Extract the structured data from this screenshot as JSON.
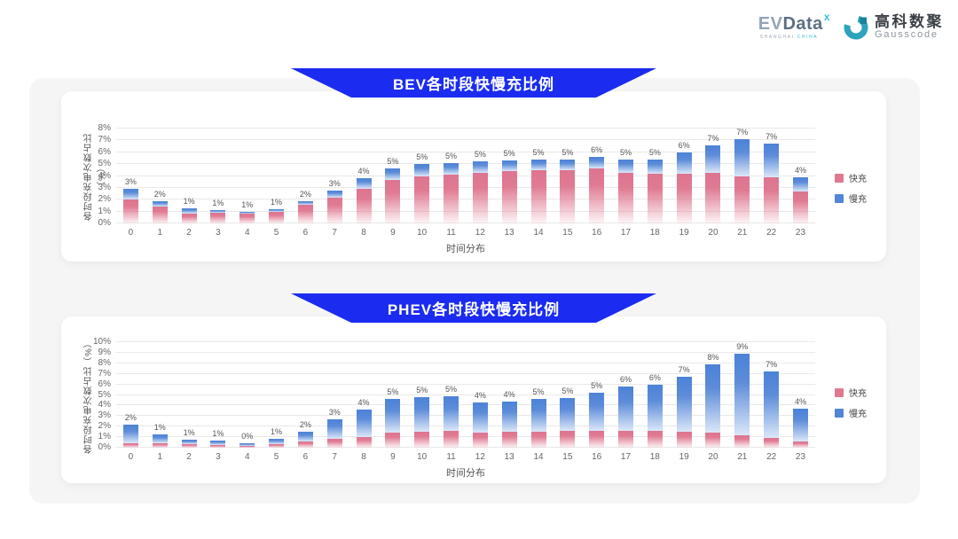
{
  "logo": {
    "evdata": {
      "ev": "EV",
      "data": "Data",
      "sup": "x",
      "sub_left": "SHANGHAI",
      "sub_right": "CHINA"
    },
    "gausscode": {
      "cn": "高科数聚",
      "en": "Gausscode"
    }
  },
  "colors": {
    "banner_blue": "#1b2cf0",
    "fast_pink": "#e0788f",
    "slow_blue": "#5285d6",
    "panel_gray": "#f5f5f6"
  },
  "chart_data": [
    {
      "type": "bar",
      "stacked": true,
      "title": "BEV各时段快慢充比例",
      "xlabel": "时间分布",
      "ylabel": "各时段充电次数占比（%）",
      "ylim": [
        0,
        8
      ],
      "ytick_step": 1,
      "grid": true,
      "legend_position": "right",
      "categories": [
        "0",
        "1",
        "2",
        "3",
        "4",
        "5",
        "6",
        "7",
        "8",
        "9",
        "10",
        "11",
        "12",
        "13",
        "14",
        "15",
        "16",
        "17",
        "18",
        "19",
        "20",
        "21",
        "22",
        "23"
      ],
      "series": [
        {
          "name": "快充",
          "color": "#e0788f",
          "values": [
            2.0,
            1.4,
            0.8,
            0.9,
            0.85,
            1.0,
            1.6,
            2.2,
            2.9,
            3.7,
            4.0,
            4.1,
            4.3,
            4.4,
            4.5,
            4.5,
            4.6,
            4.3,
            4.2,
            4.2,
            4.3,
            4.1,
            3.9,
            2.7
          ]
        },
        {
          "name": "慢充",
          "color": "#5285d6",
          "values": [
            0.9,
            0.5,
            0.5,
            0.25,
            0.1,
            0.2,
            0.3,
            0.6,
            0.9,
            0.9,
            1.0,
            1.0,
            0.9,
            0.9,
            0.9,
            0.9,
            1.0,
            1.1,
            1.2,
            1.8,
            2.3,
            3.2,
            2.8,
            1.2
          ]
        }
      ],
      "bar_total_labels": [
        "3%",
        "2%",
        "1%",
        "1%",
        "1%",
        "1%",
        "2%",
        "3%",
        "4%",
        "5%",
        "5%",
        "5%",
        "5%",
        "5%",
        "5%",
        "5%",
        "6%",
        "5%",
        "5%",
        "6%",
        "7%",
        "7%",
        "7%",
        "4%"
      ]
    },
    {
      "type": "bar",
      "stacked": true,
      "title": "PHEV各时段快慢充比例",
      "xlabel": "时间分布",
      "ylabel": "各时段充电次数占比（%）",
      "ylim": [
        0,
        10
      ],
      "ytick_step": 1,
      "grid": true,
      "legend_position": "right",
      "categories": [
        "0",
        "1",
        "2",
        "3",
        "4",
        "5",
        "6",
        "7",
        "8",
        "9",
        "10",
        "11",
        "12",
        "13",
        "14",
        "15",
        "16",
        "17",
        "18",
        "19",
        "20",
        "21",
        "22",
        "23"
      ],
      "series": [
        {
          "name": "快充",
          "color": "#e0788f",
          "values": [
            0.45,
            0.4,
            0.3,
            0.25,
            0.2,
            0.3,
            0.55,
            0.8,
            1.0,
            1.4,
            1.5,
            1.6,
            1.4,
            1.5,
            1.5,
            1.6,
            1.6,
            1.6,
            1.6,
            1.5,
            1.4,
            1.2,
            0.9,
            0.6
          ]
        },
        {
          "name": "慢充",
          "color": "#5285d6",
          "values": [
            1.75,
            0.85,
            0.5,
            0.4,
            0.25,
            0.55,
            1.0,
            1.9,
            2.6,
            3.2,
            3.3,
            3.3,
            2.9,
            2.9,
            3.1,
            3.1,
            3.6,
            4.2,
            4.4,
            5.2,
            6.5,
            7.7,
            6.3,
            3.1
          ]
        }
      ],
      "bar_total_labels": [
        "2%",
        "1%",
        "1%",
        "1%",
        "0%",
        "1%",
        "2%",
        "3%",
        "4%",
        "5%",
        "5%",
        "5%",
        "4%",
        "4%",
        "5%",
        "5%",
        "5%",
        "6%",
        "6%",
        "7%",
        "8%",
        "9%",
        "7%",
        "4%"
      ]
    }
  ]
}
